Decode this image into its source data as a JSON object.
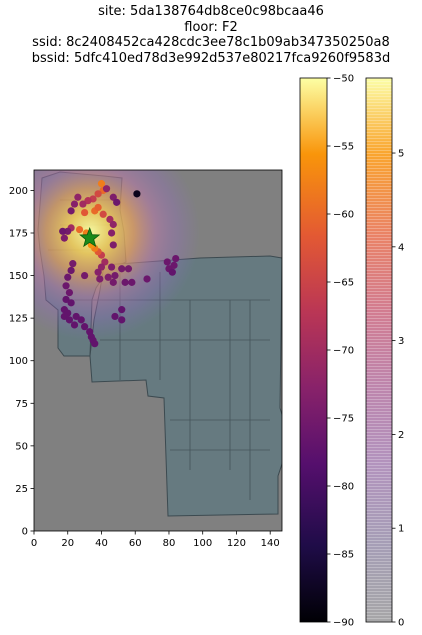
{
  "title_lines": [
    "site: 5da138764db8ce0c98bcaa46",
    "floor: F2",
    "ssid: 8c2408452ca428cdc3ee78c1b09ab347350250a8",
    "bssid: 5dfc410ed78d3e992d537e80217fca9260f9583d"
  ],
  "chart_data": {
    "type": "scatter",
    "title": "site: 5da138764db8ce0c98bcaa46 / floor: F2 / ssid: 8c2408452ca428cdc3ee78c1b09ab347350250a8 / bssid: 5dfc410ed78d3e992d537e80217fca9260f9583d",
    "xlim": [
      0,
      147
    ],
    "ylim": [
      0,
      212
    ],
    "xticks": [
      0,
      20,
      40,
      60,
      80,
      100,
      120,
      140
    ],
    "yticks": [
      0,
      25,
      50,
      75,
      100,
      125,
      150,
      175,
      200
    ],
    "background": "floor plan image",
    "heatmap": {
      "peak": [
        33,
        173
      ],
      "sigma": 15
    },
    "estimated_position": {
      "x": 33,
      "y": 172,
      "marker": "star",
      "color": "#1a8a1a"
    },
    "points": [
      {
        "x": 40,
        "y": 204,
        "v": -58
      },
      {
        "x": 41,
        "y": 200,
        "v": -60
      },
      {
        "x": 38,
        "y": 198,
        "v": -64
      },
      {
        "x": 43,
        "y": 201,
        "v": -72
      },
      {
        "x": 47,
        "y": 196,
        "v": -74
      },
      {
        "x": 49,
        "y": 193,
        "v": -76
      },
      {
        "x": 35,
        "y": 195,
        "v": -66
      },
      {
        "x": 32,
        "y": 194,
        "v": -68
      },
      {
        "x": 29,
        "y": 192,
        "v": -70
      },
      {
        "x": 26,
        "y": 196,
        "v": -72
      },
      {
        "x": 24,
        "y": 192,
        "v": -73
      },
      {
        "x": 22,
        "y": 188,
        "v": -75
      },
      {
        "x": 30,
        "y": 187,
        "v": -62
      },
      {
        "x": 36,
        "y": 188,
        "v": -60
      },
      {
        "x": 38,
        "y": 190,
        "v": -61
      },
      {
        "x": 41,
        "y": 186,
        "v": -64
      },
      {
        "x": 45,
        "y": 183,
        "v": -70
      },
      {
        "x": 47,
        "y": 180,
        "v": -72
      },
      {
        "x": 46,
        "y": 175,
        "v": -73
      },
      {
        "x": 47,
        "y": 168,
        "v": -74
      },
      {
        "x": 40,
        "y": 162,
        "v": -66
      },
      {
        "x": 38,
        "y": 164,
        "v": -62
      },
      {
        "x": 36,
        "y": 166,
        "v": -58
      },
      {
        "x": 34,
        "y": 168,
        "v": -56
      },
      {
        "x": 31,
        "y": 175,
        "v": -58
      },
      {
        "x": 27,
        "y": 177,
        "v": -60
      },
      {
        "x": 22,
        "y": 178,
        "v": -70
      },
      {
        "x": 20,
        "y": 176,
        "v": -75
      },
      {
        "x": 17,
        "y": 176,
        "v": -76
      },
      {
        "x": 18,
        "y": 172,
        "v": -74
      },
      {
        "x": 42,
        "y": 158,
        "v": -70
      },
      {
        "x": 40,
        "y": 155,
        "v": -72
      },
      {
        "x": 38,
        "y": 152,
        "v": -73
      },
      {
        "x": 46,
        "y": 155,
        "v": -74
      },
      {
        "x": 52,
        "y": 154,
        "v": -75
      },
      {
        "x": 56,
        "y": 154,
        "v": -75
      },
      {
        "x": 48,
        "y": 150,
        "v": -75
      },
      {
        "x": 44,
        "y": 149,
        "v": -74
      },
      {
        "x": 39,
        "y": 148,
        "v": -74
      },
      {
        "x": 47,
        "y": 146,
        "v": -75
      },
      {
        "x": 54,
        "y": 146,
        "v": -76
      },
      {
        "x": 58,
        "y": 146,
        "v": -76
      },
      {
        "x": 67,
        "y": 148,
        "v": -76
      },
      {
        "x": 79,
        "y": 158,
        "v": -76
      },
      {
        "x": 80,
        "y": 154,
        "v": -76
      },
      {
        "x": 82,
        "y": 152,
        "v": -77
      },
      {
        "x": 83,
        "y": 156,
        "v": -76
      },
      {
        "x": 84,
        "y": 160,
        "v": -76
      },
      {
        "x": 30,
        "y": 150,
        "v": -75
      },
      {
        "x": 23,
        "y": 157,
        "v": -75
      },
      {
        "x": 22,
        "y": 153,
        "v": -76
      },
      {
        "x": 20,
        "y": 149,
        "v": -76
      },
      {
        "x": 19,
        "y": 144,
        "v": -76
      },
      {
        "x": 21,
        "y": 140,
        "v": -76
      },
      {
        "x": 19,
        "y": 136,
        "v": -77
      },
      {
        "x": 22,
        "y": 134,
        "v": -77
      },
      {
        "x": 18,
        "y": 130,
        "v": -77
      },
      {
        "x": 20,
        "y": 128,
        "v": -77
      },
      {
        "x": 18,
        "y": 126,
        "v": -77
      },
      {
        "x": 21,
        "y": 124,
        "v": -77
      },
      {
        "x": 24,
        "y": 121,
        "v": -77
      },
      {
        "x": 25,
        "y": 126,
        "v": -77
      },
      {
        "x": 28,
        "y": 124,
        "v": -77
      },
      {
        "x": 30,
        "y": 120,
        "v": -77
      },
      {
        "x": 33,
        "y": 117,
        "v": -77
      },
      {
        "x": 34,
        "y": 114,
        "v": -77
      },
      {
        "x": 35,
        "y": 112,
        "v": -77
      },
      {
        "x": 36,
        "y": 110,
        "v": -77
      },
      {
        "x": 52,
        "y": 130,
        "v": -77
      },
      {
        "x": 48,
        "y": 126,
        "v": -77
      },
      {
        "x": 52,
        "y": 124,
        "v": -77
      },
      {
        "x": 61,
        "y": 198,
        "v": -88
      }
    ],
    "colorbars": [
      {
        "cmap": "inferno",
        "range": [
          -90,
          -50
        ],
        "ticks": [
          -90,
          -85,
          -80,
          -75,
          -70,
          -65,
          -60,
          -55,
          -50
        ]
      },
      {
        "cmap": "inferno (alpha ramp)",
        "range": [
          0,
          5.8
        ],
        "ticks": [
          0,
          1,
          2,
          3,
          4,
          5
        ]
      }
    ]
  }
}
